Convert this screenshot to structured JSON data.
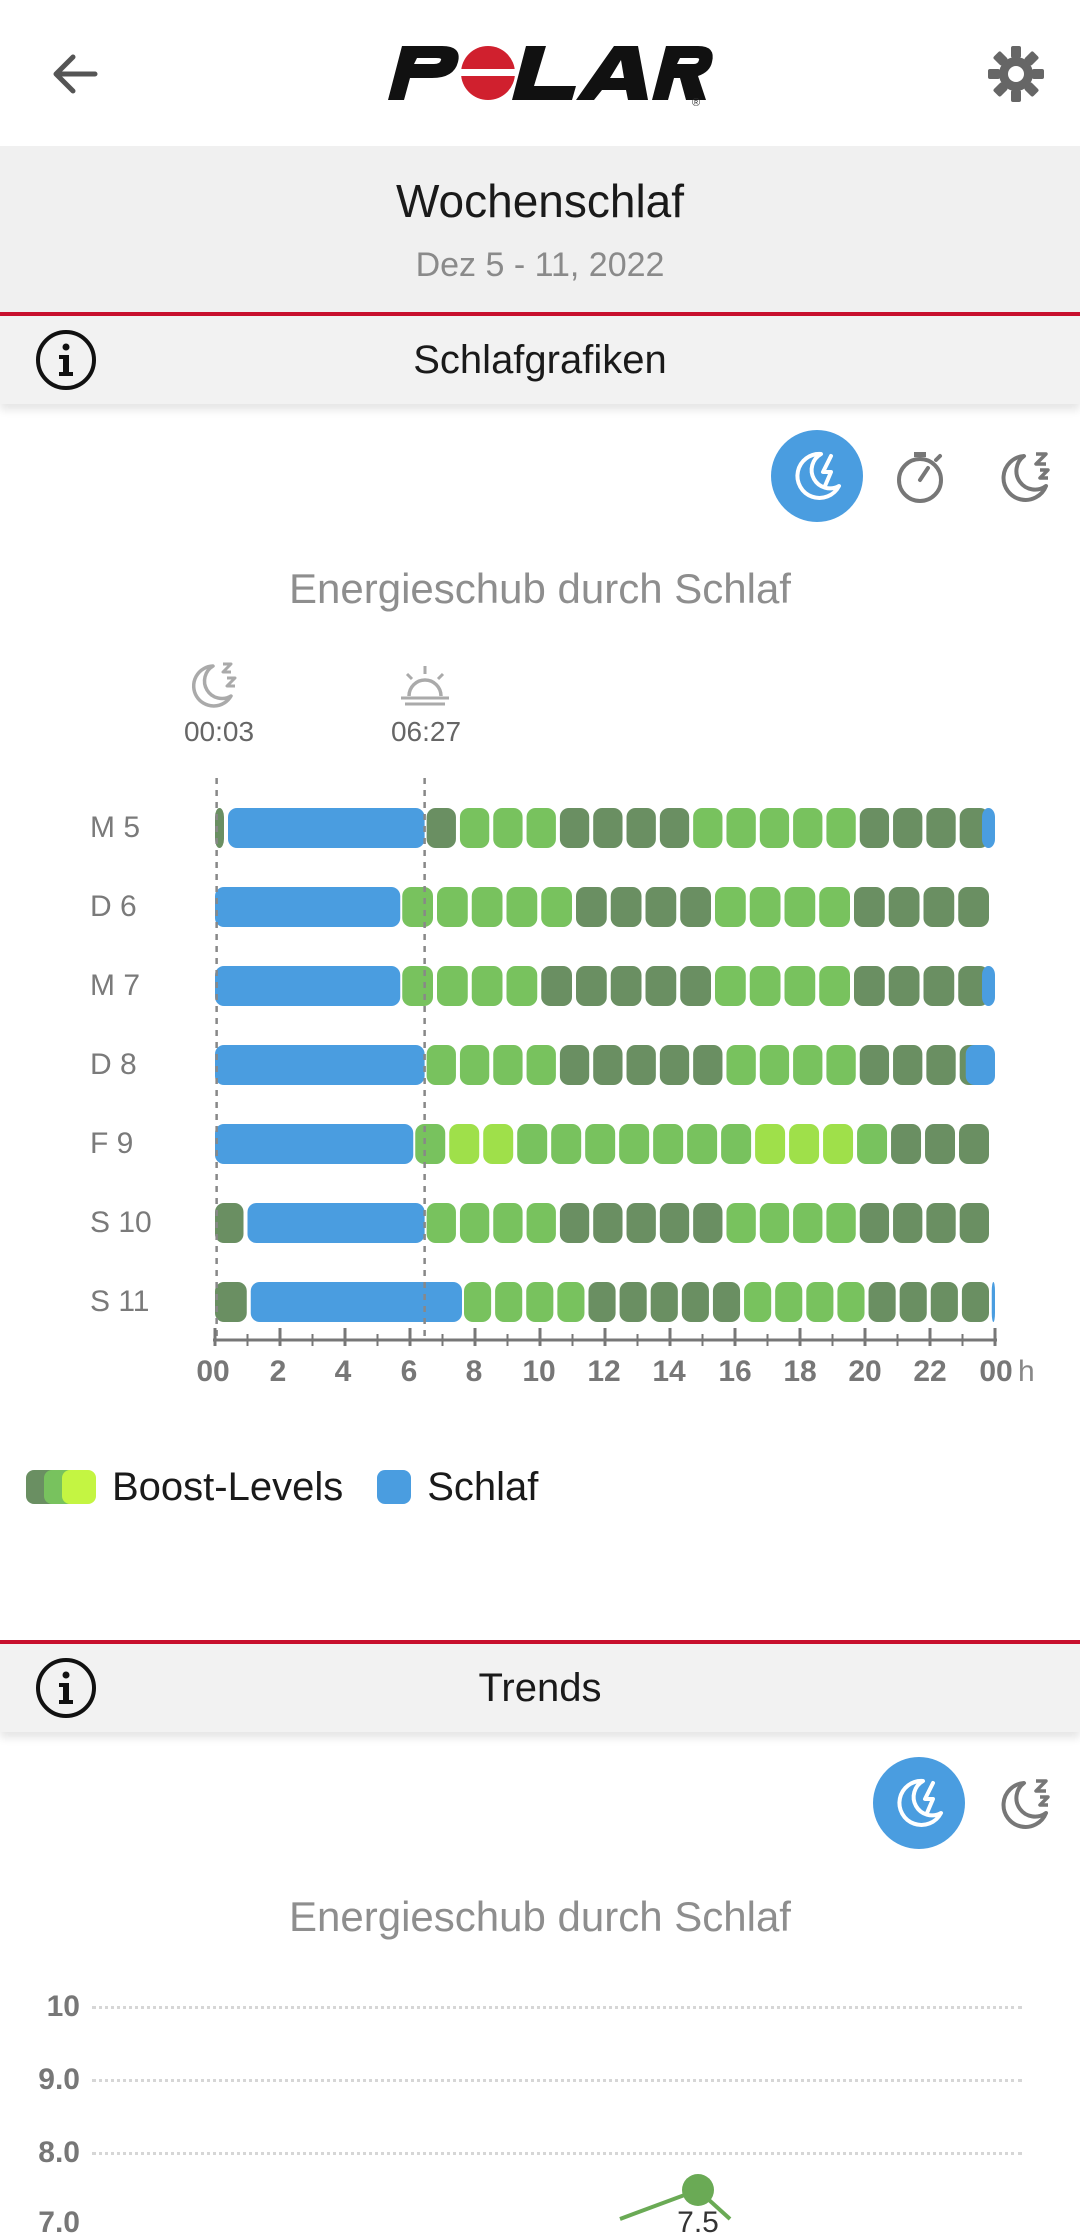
{
  "header": {
    "title": "Wochenschlaf",
    "date_range": "Dez 5 - 11, 2022",
    "logo_text": "POLAR"
  },
  "icons": {
    "back": "arrow-left-icon",
    "settings": "gear-icon",
    "info": "info-circle-icon",
    "sleep_boost": "moon-bolt-icon",
    "stopwatch": "stopwatch-icon",
    "sleep": "moon-zz-icon",
    "fell_asleep": "moon-zz-icon",
    "woke_up": "sunrise-icon"
  },
  "colors": {
    "accent_red": "#c8102e",
    "sleep_blue": "#4a9de0",
    "boost_dark": "#6a8f62",
    "boost_mid": "#78c25e",
    "boost_light": "#9fe04a"
  },
  "schlafgrafiken": {
    "section_title": "Schlafgrafiken",
    "chart_title": "Energieschub durch Schlaf",
    "fell_asleep_time": "00:03",
    "woke_up_time": "06:27",
    "unit": "h",
    "legend": {
      "boost": "Boost-Levels",
      "sleep": "Schlaf"
    }
  },
  "chart_data": {
    "type": "bar",
    "title": "Energieschub durch Schlaf",
    "xlabel": "",
    "ylabel": "",
    "x_unit": "h",
    "x_ticks": [
      "00",
      "2",
      "4",
      "6",
      "8",
      "10",
      "12",
      "14",
      "16",
      "18",
      "20",
      "22",
      "00"
    ],
    "xlim": [
      0,
      24
    ],
    "days": [
      "M 5",
      "D 6",
      "M 7",
      "D 8",
      "F 9",
      "S 10",
      "S 11"
    ],
    "series": [
      {
        "name": "Schlaf",
        "segments": [
          [
            [
              0.4,
              6.45
            ],
            [
              23.6,
              24.0
            ]
          ],
          [
            [
              0.0,
              5.7
            ]
          ],
          [
            [
              0.0,
              5.7
            ],
            [
              23.6,
              24.0
            ]
          ],
          [
            [
              0.0,
              6.45
            ],
            [
              23.1,
              24.0
            ]
          ],
          [
            [
              0.0,
              6.1
            ]
          ],
          [
            [
              1.0,
              6.45
            ]
          ],
          [
            [
              1.1,
              7.6
            ],
            [
              23.9,
              24.0
            ]
          ]
        ]
      },
      {
        "name": "Boost-Levels",
        "hourly_levels": [
          [
            1,
            2,
            2,
            2,
            1,
            1,
            1,
            1,
            2,
            2,
            2,
            2,
            2,
            1,
            1,
            1,
            1
          ],
          [
            2,
            2,
            2,
            2,
            2,
            1,
            1,
            1,
            1,
            2,
            2,
            2,
            2,
            1,
            1,
            1,
            1
          ],
          [
            2,
            2,
            2,
            2,
            1,
            1,
            1,
            1,
            1,
            2,
            2,
            2,
            2,
            1,
            1,
            1,
            1
          ],
          [
            2,
            2,
            2,
            2,
            1,
            1,
            1,
            1,
            1,
            2,
            2,
            2,
            2,
            1,
            1,
            1,
            1
          ],
          [
            2,
            3,
            3,
            2,
            2,
            2,
            2,
            2,
            2,
            2,
            3,
            3,
            3,
            2,
            1,
            1,
            1
          ],
          [
            2,
            2,
            2,
            2,
            1,
            1,
            1,
            1,
            1,
            2,
            2,
            2,
            2,
            1,
            1,
            1,
            1
          ],
          [
            2,
            2,
            2,
            2,
            1,
            1,
            1,
            1,
            1,
            2,
            2,
            2,
            2,
            1,
            1,
            1,
            1
          ]
        ],
        "boost_start_hours": [
          6.45,
          5.7,
          5.7,
          6.45,
          6.1,
          6.45,
          7.6
        ]
      }
    ],
    "markers": [
      {
        "label": "00:03",
        "hour": 0.05
      },
      {
        "label": "06:27",
        "hour": 6.45
      }
    ],
    "legend_position": "bottom-left",
    "grid": false
  },
  "trends": {
    "section_title": "Trends",
    "chart_title": "Energieschub durch Schlaf",
    "y_ticks": [
      "10",
      "9.0",
      "8.0",
      "7.0"
    ],
    "point_label": "7.5",
    "point_value": 7.5
  }
}
